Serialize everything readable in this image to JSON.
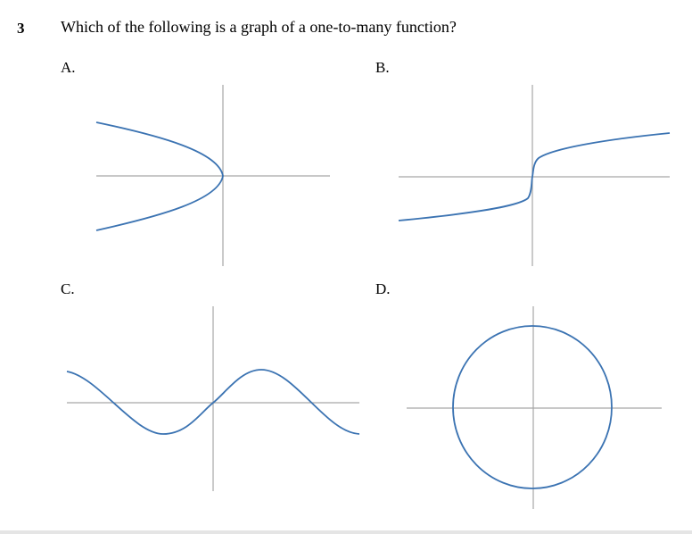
{
  "question": {
    "number": "3",
    "text": "Which of the following is a graph of a one-to-many function?"
  },
  "options": [
    {
      "label": "A.",
      "graph": "sideways-parabola"
    },
    {
      "label": "B.",
      "graph": "cube-root-curve"
    },
    {
      "label": "C.",
      "graph": "sine-wave"
    },
    {
      "label": "D.",
      "graph": "circle"
    }
  ],
  "colors": {
    "curve": "#3b73b2",
    "axis": "#a6a6a6"
  }
}
